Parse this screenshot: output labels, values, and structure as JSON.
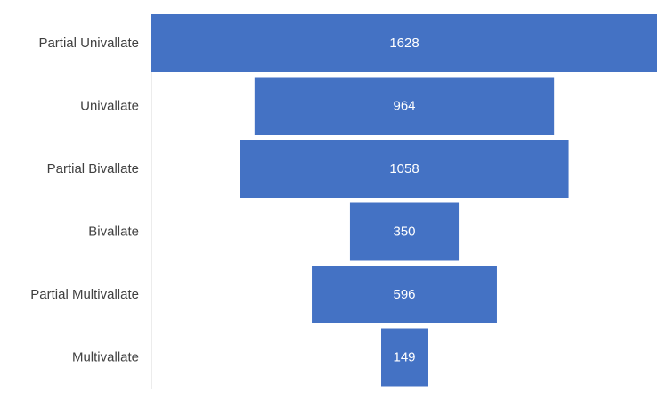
{
  "chart_data": {
    "type": "bar",
    "subtype": "funnel",
    "orientation": "horizontal",
    "categories": [
      "Partial Univallate",
      "Univallate",
      "Partial Bivallate",
      "Bivallate",
      "Partial Multivallate",
      "Multivallate"
    ],
    "values": [
      1628,
      964,
      1058,
      350,
      596,
      149
    ],
    "data_labels": true,
    "bar_color": "#4472C4",
    "axis_color": "#D9D9D9",
    "grid": false,
    "legend": "none"
  }
}
